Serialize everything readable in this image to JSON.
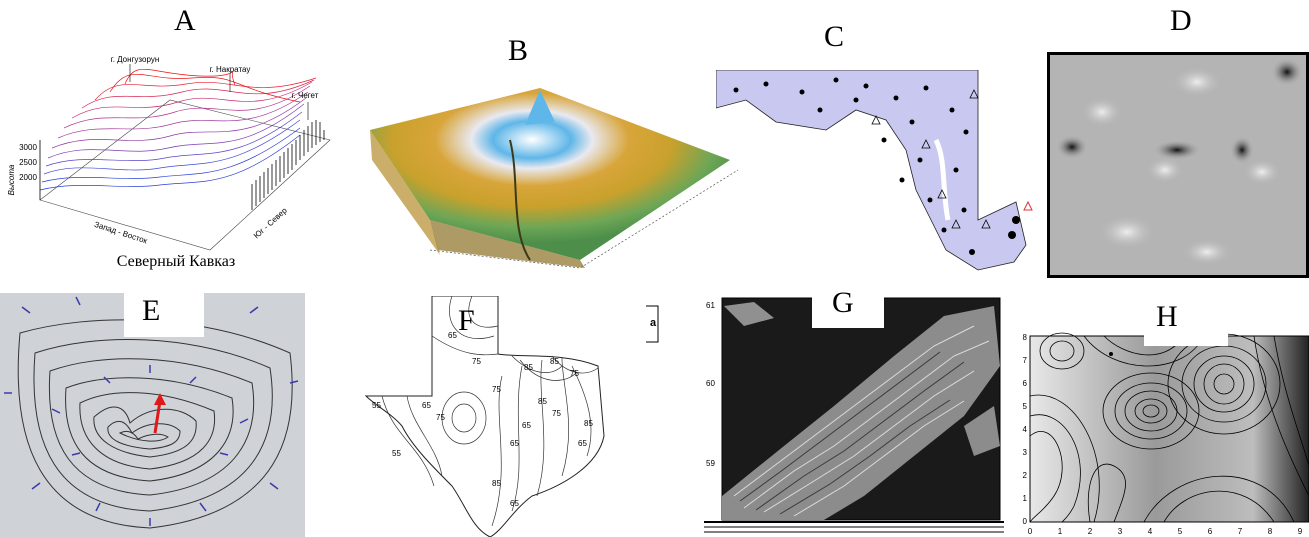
{
  "panels": {
    "A": {
      "letter": "A",
      "peaks": [
        "г. Донгузорун",
        "г. Накратау",
        "г. Чегет"
      ],
      "axis_z_label": "Высота",
      "axis_x_label": "Запад - Восток",
      "axis_y_label": "Юг - Север",
      "z_ticks": [
        "3000",
        "2500",
        "2000"
      ],
      "caption": "Северный Кавказ"
    },
    "B": {
      "letter": "B"
    },
    "C": {
      "letter": "C"
    },
    "D": {
      "letter": "D"
    },
    "E": {
      "letter": "E"
    },
    "F": {
      "letter": "F",
      "inset_label": "a",
      "contour_labels": [
        "65",
        "75",
        "85",
        "85",
        "75",
        "75",
        "65",
        "75",
        "85",
        "65",
        "55",
        "65",
        "75",
        "85",
        "55",
        "85",
        "65",
        "65"
      ]
    },
    "G": {
      "letter": "G",
      "y_ticks": [
        "61",
        "60",
        "59"
      ]
    },
    "H": {
      "letter": "H",
      "y_ticks": [
        "8",
        "7",
        "6",
        "5",
        "4",
        "3",
        "2",
        "1",
        "0"
      ],
      "x_ticks": [
        "0",
        "1",
        "2",
        "3",
        "4",
        "5",
        "6",
        "7",
        "8",
        "9"
      ]
    }
  }
}
